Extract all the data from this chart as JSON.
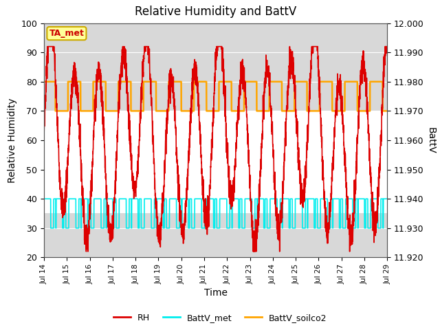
{
  "title": "Relative Humidity and BattV",
  "xlabel": "Time",
  "ylabel_left": "Relative Humidity",
  "ylabel_right": "BattV",
  "annotation_text": "TA_met",
  "annotation_box_facecolor": "#FFFF99",
  "annotation_box_edgecolor": "#CCAA00",
  "annotation_text_color": "#CC0000",
  "xlim": [
    0,
    15
  ],
  "ylim_left": [
    20,
    100
  ],
  "ylim_right": [
    11.92,
    12.0
  ],
  "rh_color": "#DD0000",
  "battv_met_color": "#00EEEE",
  "battv_soilco2_color": "#FFA500",
  "bg_gray": "#D8D8D8",
  "bg_mid": "#FFFFFF",
  "grid_color": "#BBBBBB",
  "xtick_labels": [
    "Jul 14",
    "Jul 15",
    "Jul 16",
    "Jul 17",
    "Jul 18",
    "Jul 19",
    "Jul 20",
    "Jul 21",
    "Jul 22",
    "Jul 23",
    "Jul 24",
    "Jul 25",
    "Jul 26",
    "Jul 27",
    "Jul 28",
    "Jul 29"
  ],
  "xtick_positions": [
    0,
    1,
    2,
    3,
    4,
    5,
    6,
    7,
    8,
    9,
    10,
    11,
    12,
    13,
    14,
    15
  ],
  "ytick_left": [
    20,
    30,
    40,
    50,
    60,
    70,
    80,
    90,
    100
  ],
  "ytick_right": [
    11.92,
    11.93,
    11.94,
    11.95,
    11.96,
    11.97,
    11.98,
    11.99,
    12.0
  ],
  "legend_labels": [
    "RH",
    "BattV_met",
    "BattV_soilco2"
  ],
  "legend_colors": [
    "#DD0000",
    "#00EEEE",
    "#FFA500"
  ]
}
